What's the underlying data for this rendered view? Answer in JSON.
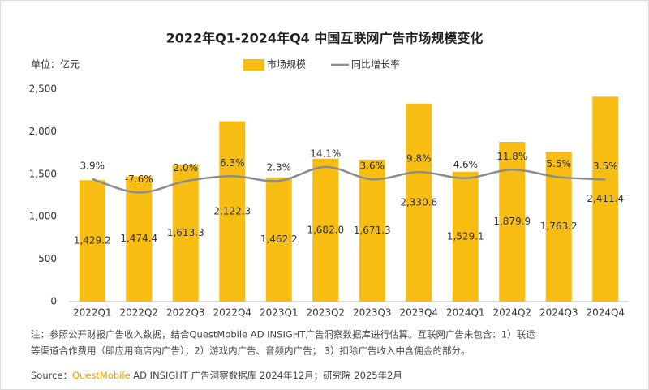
{
  "chart_data": {
    "type": "bar-line",
    "title": "2022年Q1-2024年Q4 中国互联网广告市场规模变化",
    "unit_label": "单位：亿元",
    "categories": [
      "2022Q1",
      "2022Q2",
      "2022Q3",
      "2022Q4",
      "2023Q1",
      "2023Q2",
      "2023Q3",
      "2023Q4",
      "2024Q1",
      "2024Q2",
      "2024Q3",
      "2024Q4"
    ],
    "series": [
      {
        "name": "市场规模",
        "type": "bar",
        "color": "#f7bd13",
        "values": [
          1429.2,
          1474.4,
          1613.3,
          2122.3,
          1462.2,
          1682.0,
          1671.3,
          2330.6,
          1529.1,
          1879.9,
          1763.2,
          2411.4
        ],
        "value_labels": [
          "1,429.2",
          "1,474.4",
          "1,613.3",
          "2,122.3",
          "1,462.2",
          "1,682.0",
          "1,671.3",
          "2,330.6",
          "1,529.1",
          "1,879.9",
          "1,763.2",
          "2,411.4"
        ]
      },
      {
        "name": "同比增长率",
        "type": "line",
        "axis": "y2",
        "color": "#8c8c8c",
        "values": [
          3.9,
          -7.6,
          2.0,
          6.3,
          2.3,
          14.1,
          3.6,
          9.8,
          4.6,
          11.8,
          5.5,
          3.5
        ],
        "value_labels": [
          "3.9%",
          "-7.6%",
          "2.0%",
          "6.3%",
          "2.3%",
          "14.1%",
          "3.6%",
          "9.8%",
          "4.6%",
          "11.8%",
          "5.5%",
          "3.5%"
        ]
      }
    ],
    "ylim": [
      0,
      2500
    ],
    "yticks": [
      0,
      500,
      {
        "value": 1000,
        "label": "1,000"
      },
      {
        "value": 1500,
        "label": "1,500"
      },
      {
        "value": 2000,
        "label": "2,000"
      },
      {
        "value": 2500,
        "label": "2,500"
      }
    ],
    "y2lim": [
      -100,
      80
    ],
    "legend": "top",
    "note": [
      "注：参照公开财报广告收入数据，结合QuestMobile AD INSIGHT广告洞察数据库进行估算。互联网广告未包含：1）联运",
      "等渠道合作费用（即应用商店内广告）；2）游戏内广告、音频内广告；  3）扣除广告收入中含佣金的部分。"
    ],
    "source_label": "Source：",
    "source_brand": "QuestMobile",
    "source_text": " AD INSIGHT 广告洞察数据库 2024年12月；研究院 2025年2月"
  }
}
